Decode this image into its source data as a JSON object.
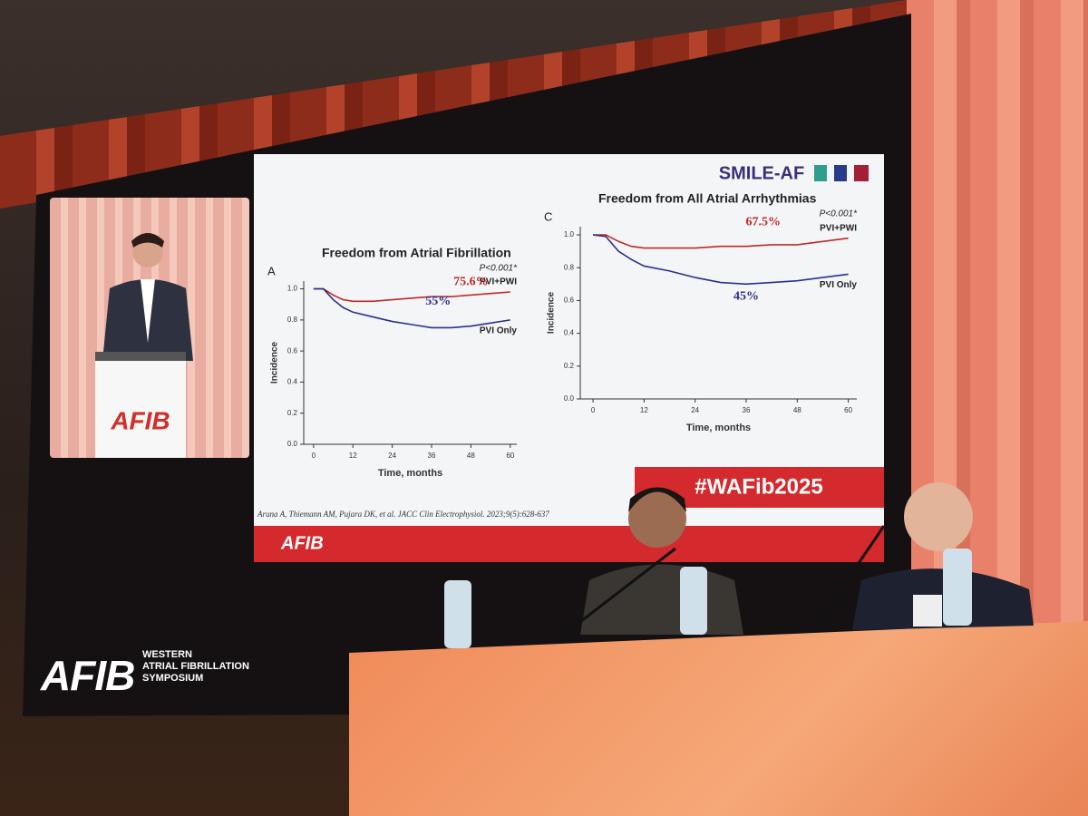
{
  "screen": {
    "logo": "AFIB",
    "logo_lines": [
      "WESTERN",
      "ATRIAL FIBRILLATION",
      "SYMPOSIUM"
    ]
  },
  "inset": {
    "podium": "AFIB"
  },
  "slide": {
    "logo": "SMILE-AF",
    "hashtag": "#WAFib2025",
    "citation": "Aruna A, Thiemann AM, Pujara DK, et al. JACC Clin Electrophysiol. 2023;9(5):628-637",
    "footer_logo": "AFIB"
  },
  "chart_data": [
    {
      "type": "line",
      "panel": "A",
      "title": "Freedom from Atrial Fibrillation",
      "p_value": "P<0.001*",
      "x_label": "Time, months",
      "y_label": "Incidence",
      "x": [
        0,
        3,
        6,
        9,
        12,
        18,
        24,
        30,
        36,
        42,
        48,
        54,
        60
      ],
      "series": [
        {
          "name": "PVI+PWI",
          "color": "#c0282a",
          "values": [
            1.0,
            1.0,
            0.96,
            0.93,
            0.92,
            0.92,
            0.93,
            0.94,
            0.95,
            0.95,
            0.96,
            0.97,
            0.98
          ]
        },
        {
          "name": "PVI Only",
          "color": "#2b2f8f",
          "values": [
            1.0,
            1.0,
            0.93,
            0.88,
            0.85,
            0.82,
            0.79,
            0.77,
            0.75,
            0.75,
            0.76,
            0.78,
            0.8
          ]
        }
      ],
      "annotations": [
        {
          "text": "75.6%",
          "color": "#c0282a"
        },
        {
          "text": "55%",
          "color": "#2b2f8f"
        }
      ],
      "xlim": [
        -3,
        62
      ],
      "ylim": [
        0,
        1.05
      ],
      "xticks": [
        0,
        12,
        24,
        36,
        48,
        60
      ],
      "yticks": [
        {
          "value": 0,
          "label": "0.0"
        },
        0.2,
        0.4,
        0.6,
        0.8,
        {
          "value": 1,
          "label": "1.0"
        }
      ]
    },
    {
      "type": "line",
      "panel": "C",
      "title": "Freedom from All Atrial Arrhythmias",
      "p_value": "P<0.001*",
      "x_label": "Time, months",
      "y_label": "Incidence",
      "x": [
        0,
        3,
        6,
        9,
        12,
        18,
        24,
        30,
        36,
        42,
        48,
        54,
        60
      ],
      "series": [
        {
          "name": "PVI+PWI",
          "color": "#c0282a",
          "values": [
            1.0,
            1.0,
            0.96,
            0.93,
            0.92,
            0.92,
            0.92,
            0.93,
            0.93,
            0.94,
            0.94,
            0.96,
            0.98
          ]
        },
        {
          "name": "PVI Only",
          "color": "#2b2f8f",
          "values": [
            1.0,
            0.99,
            0.9,
            0.85,
            0.81,
            0.78,
            0.74,
            0.71,
            0.7,
            0.71,
            0.72,
            0.74,
            0.76
          ]
        }
      ],
      "annotations": [
        {
          "text": "67.5%",
          "color": "#c0282a"
        },
        {
          "text": "45%",
          "color": "#2b2f8f"
        }
      ],
      "xlim": [
        -3,
        62
      ],
      "ylim": [
        0,
        1.05
      ],
      "xticks": [
        0,
        12,
        24,
        36,
        48,
        60
      ],
      "yticks": [
        {
          "value": 0,
          "label": "0.0"
        },
        0.2,
        0.4,
        0.6,
        0.8,
        {
          "value": 1,
          "label": "1.0"
        }
      ]
    }
  ]
}
